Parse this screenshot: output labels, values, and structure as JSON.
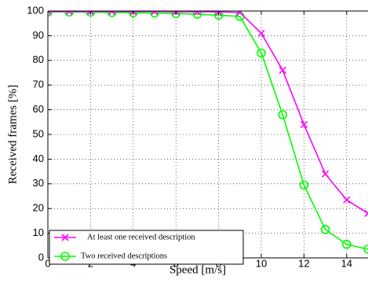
{
  "chart_data": {
    "type": "line",
    "xlabel": "Speed [m/s]",
    "ylabel": "Received frames [%]",
    "xlim": [
      0,
      15
    ],
    "ylim": [
      0,
      100
    ],
    "x_ticks": [
      "0",
      "2",
      "4",
      "6",
      "8",
      "10",
      "12",
      "14"
    ],
    "y_ticks": [
      "0",
      "10",
      "20",
      "30",
      "40",
      "50",
      "60",
      "70",
      "80",
      "90",
      "100"
    ],
    "grid": "dotted",
    "legend_position": "bottom-left",
    "x": [
      0,
      1,
      2,
      3,
      4,
      5,
      6,
      7,
      8,
      9,
      10,
      11,
      12,
      13,
      14,
      15
    ],
    "series": [
      {
        "name": "At least one received description",
        "color": "#ff00ff",
        "marker": "x",
        "values": [
          99.8,
          99.8,
          99.8,
          99.8,
          99.8,
          99.8,
          99.7,
          99.7,
          99.6,
          99.4,
          91,
          76,
          54,
          34,
          23.5,
          18
        ]
      },
      {
        "name": "Two received descriptions",
        "color": "#00ff00",
        "marker": "circle",
        "values": [
          99.6,
          99.6,
          99.5,
          99.4,
          99.3,
          99.2,
          99.0,
          98.7,
          98.3,
          97.8,
          83,
          58,
          29.5,
          11.5,
          5.5,
          3.5
        ]
      }
    ]
  }
}
